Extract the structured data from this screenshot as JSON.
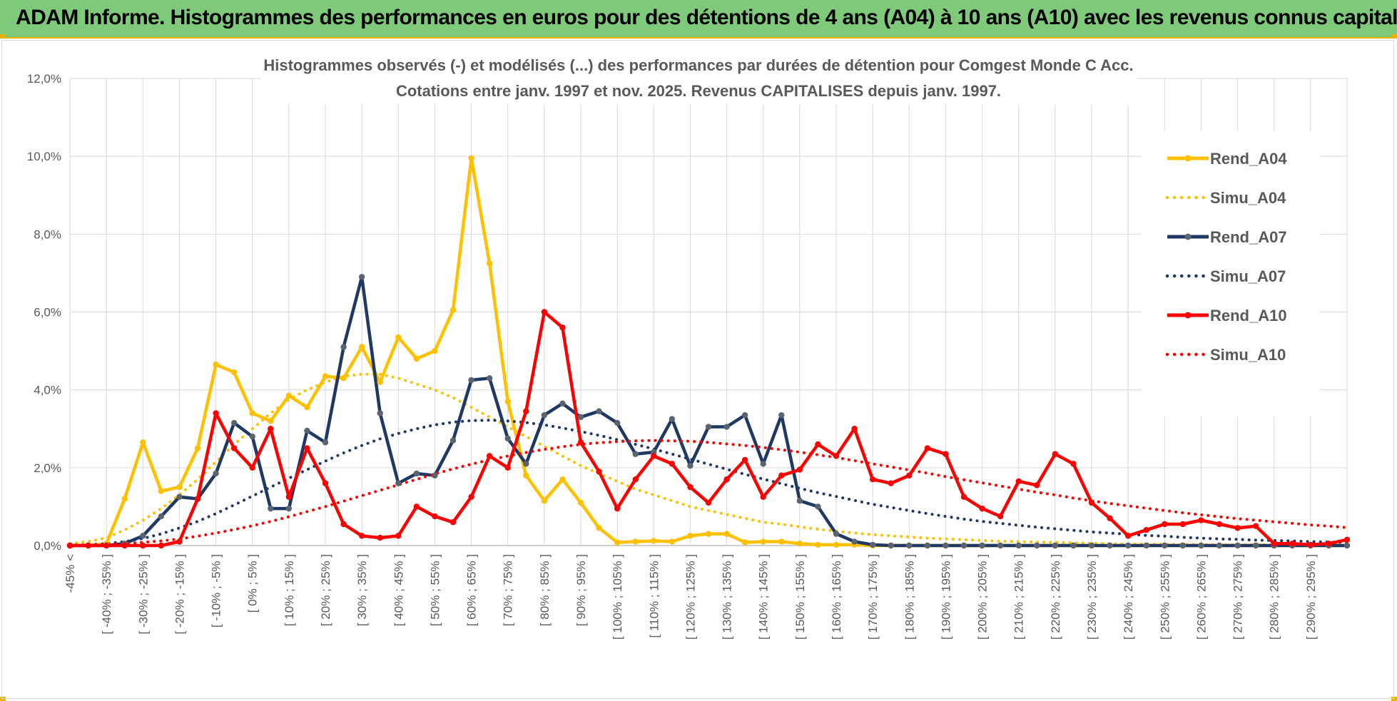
{
  "header": {
    "title": "ADAM Informe. Histogrammes des performances en euros pour des détentions de 4 ans (A04) à 10 ans (A10) avec les revenus connus capitalisés"
  },
  "colors": {
    "banner": "#7fc97a",
    "a04": "#ffc000",
    "a07": "#1f3864",
    "a07_marker": "#5a6470",
    "a10": "#ff0000",
    "grid": "#d9d9d9",
    "axis_text": "#595959"
  },
  "chart_data": {
    "type": "line",
    "title": "Histogrammes observés (-) et modélisés (...) des performances par durées de détention pour Comgest Monde C Acc.",
    "subtitle": "Cotations entre janv. 1997 et nov. 2025. Revenus CAPITALISES depuis janv. 1997.",
    "ylim": [
      0,
      12
    ],
    "yticks": [
      "0,0%",
      "2,0%",
      "4,0%",
      "6,0%",
      "8,0%",
      "10,0%",
      "12,0%"
    ],
    "legend_position": "right",
    "categories": [
      "-45% <",
      "[ -45% ; -40% ]",
      "[ -40% ; -35% ]",
      "[ -35% ; -30% ]",
      "[ -30% ; -25% ]",
      "[ -25% ; -20% ]",
      "[ -20% ; -15% ]",
      "[ -15% ; -10% ]",
      "[ -10% ; -5% ]",
      "[ -5% ; 0% ]",
      "[ 0% ; 5% ]",
      "[ 5% ; 10% ]",
      "[ 10% ; 15% ]",
      "[ 15% ; 20% ]",
      "[ 20% ; 25% ]",
      "[ 25% ; 30% ]",
      "[ 30% ; 35% ]",
      "[ 35% ; 40% ]",
      "[ 40% ; 45% ]",
      "[ 45% ; 50% ]",
      "[ 50% ; 55% ]",
      "[ 55% ; 60% ]",
      "[ 60% ; 65% ]",
      "[ 65% ; 70% ]",
      "[ 70% ; 75% ]",
      "[ 75% ; 80% ]",
      "[ 80% ; 85% ]",
      "[ 85% ; 90% ]",
      "[ 90% ; 95% ]",
      "[ 95% ; 100% ]",
      "[ 100% ; 105% ]",
      "[ 105% ; 110% ]",
      "[ 110% ; 115% ]",
      "[ 115% ; 120% ]",
      "[ 120% ; 125% ]",
      "[ 125% ; 130% ]",
      "[ 130% ; 135% ]",
      "[ 135% ; 140% ]",
      "[ 140% ; 145% ]",
      "[ 145% ; 150% ]",
      "[ 150% ; 155% ]",
      "[ 155% ; 160% ]",
      "[ 160% ; 165% ]",
      "[ 165% ; 170% ]",
      "[ 170% ; 175% ]",
      "[ 175% ; 180% ]",
      "[ 180% ; 185% ]",
      "[ 185% ; 190% ]",
      "[ 190% ; 195% ]",
      "[ 195% ; 200% ]",
      "[ 200% ; 205% ]",
      "[ 205% ; 210% ]",
      "[ 210% ; 215% ]",
      "[ 215% ; 220% ]",
      "[ 220% ; 225% ]",
      "[ 225% ; 230% ]",
      "[ 230% ; 235% ]",
      "[ 235% ; 240% ]",
      "[ 240% ; 245% ]",
      "[ 245% ; 250% ]",
      "[ 250% ; 255% ]",
      "[ 255% ; 260% ]",
      "[ 260% ; 265% ]",
      "[ 265% ; 270% ]",
      "[ 270% ; 275% ]",
      "[ 275% ; 280% ]",
      "[ 280% ; 285% ]",
      "[ 285% ; 290% ]",
      "[ 290% ; 295% ]",
      "[ 295% ; 300% ]",
      "300% >"
    ],
    "shown_tick_labels": [
      "-45% <",
      "[ -40% ; -35% ]",
      "[ -30% ; -25% ]",
      "[ -20% ; -15% ]",
      "[ -10% ; -5% ]",
      "[ 0% ; 5% ]",
      "[ 10% ; 15% ]",
      "[ 20% ; 25% ]",
      "[ 30% ; 35% ]",
      "[ 40% ; 45% ]",
      "[ 50% ; 55% ]",
      "[ 60% ; 65% ]",
      "[ 70% ; 75% ]",
      "[ 80% ; 85% ]",
      "[ 90% ; 95% ]",
      "[ 100% ; 105% ]",
      "[ 110% ; 115% ]",
      "[ 120% ; 125% ]",
      "[ 130% ; 135% ]",
      "[ 140% ; 145% ]",
      "[ 150% ; 155% ]",
      "[ 160% ; 165% ]",
      "[ 170% ; 175% ]",
      "[ 180% ; 185% ]",
      "[ 190% ; 195% ]",
      "[ 200% ; 205% ]",
      "[ 210% ; 215% ]",
      "[ 220% ; 225% ]",
      "[ 230% ; 235% ]",
      "[ 240% ; 245% ]",
      "[ 250% ; 255% ]",
      "[ 260% ; 265% ]",
      "[ 270% ; 275% ]",
      "[ 280% ; 285% ]",
      "[ 290% ; 295% ]"
    ],
    "series": [
      {
        "name": "Rend_A04",
        "style": "solid",
        "markers": true,
        "color": "#ffc000",
        "values": [
          0,
          0,
          0.05,
          1.2,
          2.65,
          1.4,
          1.5,
          2.5,
          4.65,
          4.45,
          3.4,
          3.2,
          3.85,
          3.55,
          4.35,
          4.3,
          5.1,
          4.2,
          5.35,
          4.8,
          5.0,
          6.05,
          9.95,
          7.25,
          3.7,
          1.8,
          1.15,
          1.7,
          1.1,
          0.45,
          0.08,
          0.1,
          0.12,
          0.1,
          0.25,
          0.3,
          0.3,
          0.08,
          0.1,
          0.1,
          0.05,
          0.02,
          0.02,
          0.02,
          0,
          0,
          0,
          0,
          0,
          0,
          0,
          0,
          0,
          0,
          0,
          0,
          0,
          0,
          0,
          0,
          0,
          0,
          0,
          0,
          0,
          0,
          0,
          0,
          0,
          0,
          0
        ]
      },
      {
        "name": "Simu_A04",
        "style": "dotted",
        "markers": false,
        "color": "#ffc000",
        "values": [
          0.05,
          0.1,
          0.2,
          0.4,
          0.65,
          0.95,
          1.3,
          1.7,
          2.15,
          2.6,
          3.0,
          3.4,
          3.75,
          4.0,
          4.2,
          4.35,
          4.4,
          4.4,
          4.3,
          4.15,
          4.0,
          3.8,
          3.55,
          3.3,
          3.05,
          2.8,
          2.55,
          2.3,
          2.05,
          1.85,
          1.65,
          1.45,
          1.3,
          1.15,
          1.0,
          0.9,
          0.8,
          0.7,
          0.6,
          0.55,
          0.48,
          0.42,
          0.37,
          0.32,
          0.28,
          0.25,
          0.22,
          0.19,
          0.17,
          0.15,
          0.13,
          0.11,
          0.1,
          0.09,
          0.08,
          0.07,
          0.06,
          0.05,
          0.04,
          0.04,
          0.03,
          0.03,
          0.03,
          0.02,
          0.02,
          0.02,
          0.02,
          0.01,
          0.01,
          0.01,
          0.01
        ]
      },
      {
        "name": "Rend_A07",
        "style": "solid",
        "markers": true,
        "color": "#1f3864",
        "values": [
          0,
          0,
          0,
          0.05,
          0.25,
          0.75,
          1.25,
          1.2,
          1.85,
          3.15,
          2.8,
          0.95,
          0.95,
          2.95,
          2.65,
          5.1,
          6.9,
          3.4,
          1.6,
          1.85,
          1.8,
          2.7,
          4.25,
          4.3,
          2.75,
          2.1,
          3.35,
          3.65,
          3.3,
          3.45,
          3.15,
          2.35,
          2.4,
          3.25,
          2.05,
          3.05,
          3.05,
          3.35,
          2.1,
          3.35,
          1.15,
          1.0,
          0.3,
          0.1,
          0.02,
          0,
          0,
          0,
          0,
          0,
          0,
          0,
          0,
          0,
          0,
          0,
          0,
          0,
          0,
          0,
          0,
          0,
          0,
          0,
          0,
          0,
          0,
          0,
          0,
          0,
          0
        ]
      },
      {
        "name": "Simu_A07",
        "style": "dotted",
        "markers": false,
        "color": "#1f3864",
        "values": [
          0.01,
          0.02,
          0.05,
          0.1,
          0.18,
          0.3,
          0.45,
          0.62,
          0.82,
          1.04,
          1.27,
          1.5,
          1.73,
          1.95,
          2.17,
          2.38,
          2.57,
          2.74,
          2.88,
          3.0,
          3.1,
          3.17,
          3.21,
          3.22,
          3.2,
          3.16,
          3.1,
          3.02,
          2.93,
          2.83,
          2.72,
          2.6,
          2.48,
          2.35,
          2.22,
          2.09,
          1.96,
          1.83,
          1.71,
          1.59,
          1.47,
          1.36,
          1.26,
          1.16,
          1.06,
          0.98,
          0.9,
          0.82,
          0.75,
          0.68,
          0.62,
          0.57,
          0.52,
          0.47,
          0.43,
          0.39,
          0.35,
          0.32,
          0.29,
          0.26,
          0.24,
          0.21,
          0.19,
          0.17,
          0.16,
          0.14,
          0.13,
          0.12,
          0.1,
          0.09,
          0.08
        ]
      },
      {
        "name": "Rend_A10",
        "style": "solid",
        "markers": true,
        "color": "#ff0000",
        "values": [
          0,
          0,
          0,
          0,
          0,
          0,
          0.1,
          1.2,
          3.4,
          2.5,
          2.0,
          3.0,
          1.25,
          2.5,
          1.6,
          0.55,
          0.25,
          0.2,
          0.25,
          1.0,
          0.75,
          0.6,
          1.25,
          2.3,
          2.0,
          3.45,
          6.0,
          5.6,
          2.65,
          1.9,
          0.95,
          1.7,
          2.3,
          2.1,
          1.5,
          1.1,
          1.7,
          2.2,
          1.25,
          1.8,
          1.95,
          2.6,
          2.3,
          3.0,
          1.7,
          1.6,
          1.8,
          2.5,
          2.35,
          1.25,
          0.95,
          0.75,
          1.65,
          1.55,
          2.35,
          2.1,
          1.1,
          0.7,
          0.25,
          0.4,
          0.55,
          0.55,
          0.65,
          0.55,
          0.45,
          0.5,
          0.05,
          0.05,
          0.02,
          0.05,
          0.15
        ]
      },
      {
        "name": "Simu_A10",
        "style": "dotted",
        "markers": false,
        "color": "#ff0000",
        "values": [
          0.01,
          0.02,
          0.03,
          0.05,
          0.08,
          0.12,
          0.17,
          0.24,
          0.32,
          0.41,
          0.51,
          0.62,
          0.74,
          0.87,
          1.0,
          1.14,
          1.28,
          1.42,
          1.56,
          1.7,
          1.84,
          1.97,
          2.09,
          2.2,
          2.3,
          2.39,
          2.47,
          2.54,
          2.6,
          2.64,
          2.67,
          2.69,
          2.7,
          2.69,
          2.68,
          2.65,
          2.61,
          2.57,
          2.52,
          2.46,
          2.4,
          2.33,
          2.26,
          2.18,
          2.1,
          2.02,
          1.94,
          1.86,
          1.77,
          1.69,
          1.61,
          1.53,
          1.45,
          1.37,
          1.3,
          1.22,
          1.15,
          1.08,
          1.02,
          0.96,
          0.9,
          0.84,
          0.79,
          0.74,
          0.69,
          0.65,
          0.61,
          0.57,
          0.53,
          0.5,
          0.46
        ]
      }
    ]
  }
}
